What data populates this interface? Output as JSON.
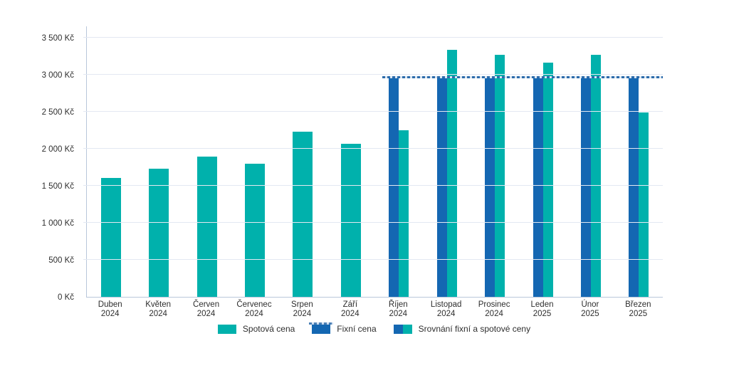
{
  "chart_data": {
    "type": "bar",
    "title": "",
    "currency": "Kč",
    "categories": [
      "Duben 2024",
      "Květen 2024",
      "Červen 2024",
      "Červenec 2024",
      "Srpen 2024",
      "Září 2024",
      "Říjen 2024",
      "Listopad 2024",
      "Prosinec 2024",
      "Leden 2025",
      "Únor 2025",
      "Březen 2025"
    ],
    "series": [
      {
        "name": "Spotová cena",
        "color": "#00b1ac",
        "values": [
          1610,
          1730,
          1890,
          1800,
          2230,
          2070,
          2250,
          3340,
          3270,
          3160,
          3270,
          2490
        ]
      },
      {
        "name": "Fixní cena",
        "color": "#1467b2",
        "values": [
          null,
          null,
          null,
          null,
          null,
          null,
          2950,
          2950,
          2950,
          2950,
          2950,
          2950
        ]
      }
    ],
    "fixed_price_line": {
      "value": 2950,
      "starts_at_category": "Říjen 2024",
      "style": "dashed",
      "color": "#2d6cab"
    },
    "ylim": [
      0,
      3500
    ],
    "ytick_step": 500,
    "ytick_labels": [
      "0 Kč",
      "500 Kč",
      "1 000 Kč",
      "1 500 Kč",
      "2 000 Kč",
      "2 500 Kč",
      "3 000 Kč",
      "3 500 Kč"
    ],
    "grid": true,
    "legend_position": "bottom",
    "legend": [
      {
        "label": "Spotová cena",
        "swatch": "teal"
      },
      {
        "label": "Fixní cena",
        "swatch": "blue-dashed"
      },
      {
        "label": "Srovnání fixní a spotové ceny",
        "swatch": "split"
      }
    ],
    "colors": {
      "spot": "#00b1ac",
      "fixed": "#1467b2",
      "dashed_line": "#2d6cab",
      "gridline": "#e3e8f2",
      "axis": "#b9c7db",
      "text": "#2e2e2e"
    }
  }
}
